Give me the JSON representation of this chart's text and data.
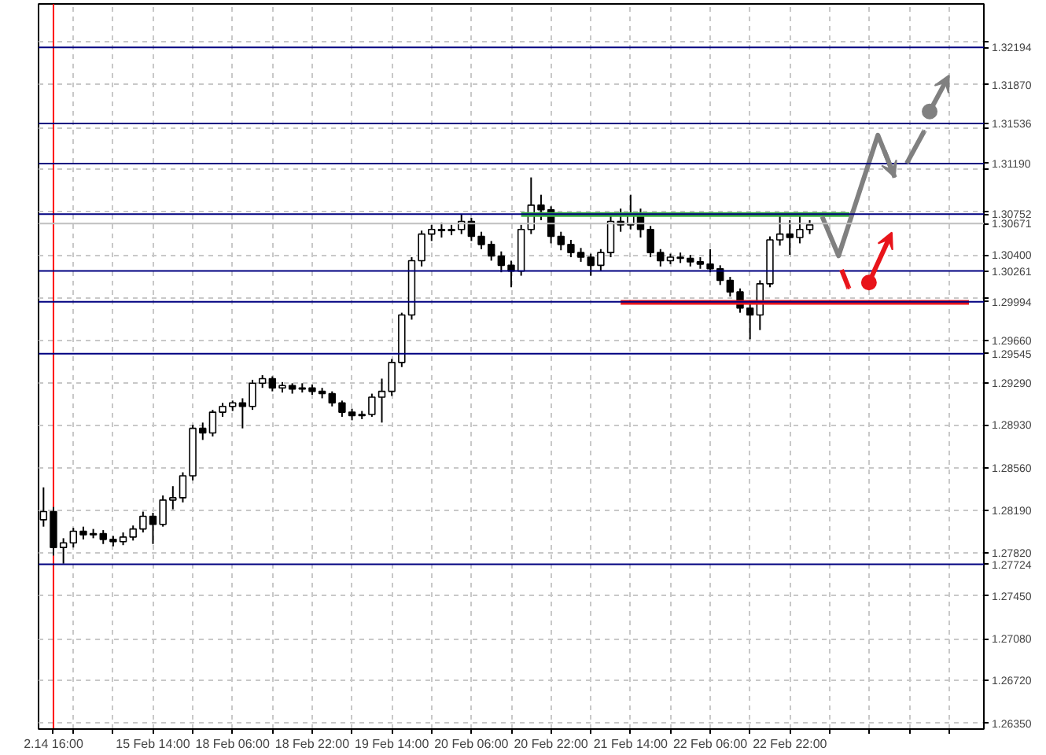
{
  "chart_data": {
    "type": "candlestick",
    "categories": [
      null,
      "2.14 16:00",
      null,
      null,
      null,
      null,
      null,
      null,
      null,
      null,
      null,
      "15 Feb 14:00",
      null,
      null,
      null,
      null,
      null,
      null,
      null,
      "18 Feb 06:00",
      null,
      null,
      null,
      null,
      null,
      null,
      null,
      "18 Feb 22:00",
      null,
      null,
      null,
      null,
      null,
      null,
      null,
      "19 Feb 14:00",
      null,
      null,
      null,
      null,
      null,
      null,
      null,
      "20 Feb 06:00",
      null,
      null,
      null,
      null,
      null,
      null,
      null,
      "20 Feb 22:00",
      null,
      null,
      null,
      null,
      null,
      null,
      null,
      "21 Feb 14:00",
      null,
      null,
      null,
      null,
      null,
      null,
      null,
      "22 Feb 06:00",
      null,
      null,
      null,
      null,
      null,
      null,
      null,
      "22 Feb 22:00",
      null,
      null,
      null,
      null,
      null,
      null,
      null,
      null,
      null,
      null,
      null,
      null,
      null,
      null,
      null,
      null,
      null,
      null,
      null
    ],
    "ohlc": [
      [
        1.2811,
        1.2839,
        1.2805,
        1.2818
      ],
      [
        1.2818,
        1.2822,
        1.278,
        1.2787
      ],
      [
        1.2787,
        1.2795,
        1.2773,
        1.2791
      ],
      [
        1.2791,
        1.2804,
        1.2787,
        1.2801
      ],
      [
        1.2801,
        1.2805,
        1.2794,
        1.2798
      ],
      [
        1.2798,
        1.2803,
        1.2795,
        1.2799
      ],
      [
        1.2799,
        1.2802,
        1.279,
        1.2794
      ],
      [
        1.2794,
        1.2797,
        1.2788,
        1.2792
      ],
      [
        1.2792,
        1.28,
        1.2789,
        1.2796
      ],
      [
        1.2796,
        1.2806,
        1.2793,
        1.2803
      ],
      [
        1.2803,
        1.2818,
        1.28,
        1.2814
      ],
      [
        1.2814,
        1.2817,
        1.279,
        1.2807
      ],
      [
        1.2807,
        1.2832,
        1.2805,
        1.2828
      ],
      [
        1.2828,
        1.284,
        1.282,
        1.283
      ],
      [
        1.283,
        1.2852,
        1.2826,
        1.2849
      ],
      [
        1.2849,
        1.2893,
        1.2845,
        1.289
      ],
      [
        1.289,
        1.2895,
        1.288,
        1.2886
      ],
      [
        1.2886,
        1.2906,
        1.2883,
        1.2904
      ],
      [
        1.2904,
        1.2912,
        1.29,
        1.2909
      ],
      [
        1.2909,
        1.2914,
        1.2905,
        1.2912
      ],
      [
        1.2912,
        1.2916,
        1.289,
        1.2909
      ],
      [
        1.2909,
        1.2932,
        1.2906,
        1.2929
      ],
      [
        1.2929,
        1.2936,
        1.2925,
        1.2933
      ],
      [
        1.2933,
        1.2935,
        1.2922,
        1.2925
      ],
      [
        1.2925,
        1.293,
        1.2921,
        1.2927
      ],
      [
        1.2927,
        1.2929,
        1.292,
        1.2924
      ],
      [
        1.2924,
        1.2929,
        1.2921,
        1.2925
      ],
      [
        1.2925,
        1.2928,
        1.2919,
        1.2922
      ],
      [
        1.2922,
        1.2925,
        1.2916,
        1.292
      ],
      [
        1.292,
        1.2922,
        1.2909,
        1.2912
      ],
      [
        1.2912,
        1.2914,
        1.29,
        1.2904
      ],
      [
        1.2904,
        1.2907,
        1.2897,
        1.2901
      ],
      [
        1.2901,
        1.2905,
        1.2898,
        1.2902
      ],
      [
        1.2902,
        1.292,
        1.29,
        1.2917
      ],
      [
        1.2917,
        1.2933,
        1.2895,
        1.2922
      ],
      [
        1.2922,
        1.295,
        1.2918,
        1.2947
      ],
      [
        1.2947,
        1.299,
        1.2943,
        1.2988
      ],
      [
        1.2988,
        1.3038,
        1.2984,
        1.3035
      ],
      [
        1.3035,
        1.3061,
        1.303,
        1.3058
      ],
      [
        1.3058,
        1.3066,
        1.3052,
        1.3062
      ],
      [
        1.3062,
        1.3068,
        1.3055,
        1.3061
      ],
      [
        1.3061,
        1.3066,
        1.3057,
        1.3062
      ],
      [
        1.3062,
        1.3075,
        1.3058,
        1.3069
      ],
      [
        1.3069,
        1.3072,
        1.3052,
        1.3056
      ],
      [
        1.3056,
        1.306,
        1.3045,
        1.3049
      ],
      [
        1.3049,
        1.3052,
        1.3035,
        1.3039
      ],
      [
        1.3039,
        1.3043,
        1.3025,
        1.3031
      ],
      [
        1.3031,
        1.3035,
        1.3012,
        1.3026
      ],
      [
        1.3026,
        1.3066,
        1.3022,
        1.3062
      ],
      [
        1.3062,
        1.3107,
        1.3058,
        1.3083
      ],
      [
        1.3083,
        1.3092,
        1.307,
        1.3079
      ],
      [
        1.3079,
        1.3082,
        1.305,
        1.3056
      ],
      [
        1.3056,
        1.306,
        1.3044,
        1.3049
      ],
      [
        1.3049,
        1.3053,
        1.3038,
        1.3042
      ],
      [
        1.3042,
        1.3046,
        1.3034,
        1.3038
      ],
      [
        1.3038,
        1.3041,
        1.3022,
        1.3031
      ],
      [
        1.3031,
        1.3045,
        1.3026,
        1.3042
      ],
      [
        1.3042,
        1.3075,
        1.3038,
        1.3069
      ],
      [
        1.3069,
        1.308,
        1.306,
        1.3066
      ],
      [
        1.3066,
        1.3092,
        1.3062,
        1.3076
      ],
      [
        1.3076,
        1.308,
        1.3055,
        1.3062
      ],
      [
        1.3062,
        1.3065,
        1.3038,
        1.3042
      ],
      [
        1.3042,
        1.3045,
        1.303,
        1.3035
      ],
      [
        1.3035,
        1.3041,
        1.3032,
        1.3038
      ],
      [
        1.3038,
        1.3042,
        1.3033,
        1.3037
      ],
      [
        1.3037,
        1.304,
        1.303,
        1.3034
      ],
      [
        1.3034,
        1.3038,
        1.3028,
        1.3032
      ],
      [
        1.3032,
        1.3045,
        1.3025,
        1.3028
      ],
      [
        1.3028,
        1.3031,
        1.3014,
        1.3018
      ],
      [
        1.3018,
        1.3021,
        1.3004,
        1.3008
      ],
      [
        1.3008,
        1.3011,
        1.299,
        1.2994
      ],
      [
        1.2994,
        1.3,
        1.2967,
        1.2988
      ],
      [
        1.2988,
        1.3018,
        1.2975,
        1.3015
      ],
      [
        1.3015,
        1.3056,
        1.3012,
        1.3053
      ],
      [
        1.3053,
        1.3075,
        1.3048,
        1.3058
      ],
      [
        1.3058,
        1.307,
        1.304,
        1.3055
      ],
      [
        1.3055,
        1.3075,
        1.305,
        1.3062
      ],
      [
        1.3062,
        1.307,
        1.3058,
        1.3066
      ],
      null,
      null,
      null,
      null,
      null,
      null,
      null,
      null,
      null,
      null,
      null,
      null,
      null,
      null,
      null,
      null,
      null
    ],
    "series": [
      {
        "type": "line",
        "color": "#3cb043",
        "values": [
          null,
          null,
          null,
          null,
          null,
          null,
          null,
          null,
          null,
          null,
          null,
          null,
          null,
          null,
          null,
          null,
          null,
          null,
          null,
          null,
          null,
          null,
          null,
          null,
          null,
          null,
          null,
          null,
          null,
          null,
          null,
          null,
          null,
          null,
          null,
          null,
          null,
          null,
          null,
          null,
          null,
          null,
          null,
          null,
          null,
          null,
          null,
          null,
          1.3075,
          1.3075,
          1.3075,
          1.3075,
          1.3075,
          1.3075,
          1.3075,
          1.3075,
          1.3075,
          1.3075,
          1.3075,
          1.3075,
          1.3075,
          1.3075,
          1.3075,
          1.3075,
          1.3075,
          1.3075,
          1.3075,
          1.3075,
          1.3075,
          1.3075,
          1.3075,
          1.3075,
          1.3075,
          1.3075,
          1.3075,
          1.3075,
          1.3075,
          1.3075,
          1.3075,
          1.3075,
          1.3075,
          1.3075,
          null,
          null,
          null,
          null,
          null,
          null,
          null,
          null,
          null,
          null,
          null,
          null,
          null
        ]
      },
      {
        "type": "line",
        "color": "#e8141a",
        "values": [
          null,
          null,
          null,
          null,
          null,
          null,
          null,
          null,
          null,
          null,
          null,
          null,
          null,
          null,
          null,
          null,
          null,
          null,
          null,
          null,
          null,
          null,
          null,
          null,
          null,
          null,
          null,
          null,
          null,
          null,
          null,
          null,
          null,
          null,
          null,
          null,
          null,
          null,
          null,
          null,
          null,
          null,
          null,
          null,
          null,
          null,
          null,
          null,
          null,
          null,
          null,
          null,
          null,
          null,
          null,
          null,
          null,
          null,
          1.2999,
          1.2999,
          1.2999,
          1.2999,
          1.2999,
          1.2999,
          1.2999,
          1.2999,
          1.2999,
          1.2999,
          1.2999,
          1.2999,
          1.2999,
          1.2999,
          1.2999,
          1.2999,
          1.2999,
          1.2999,
          1.2999,
          1.2999,
          1.2999,
          1.2999,
          1.2999,
          1.2999,
          1.2999,
          1.2999,
          1.2999,
          1.2999,
          1.2999,
          1.2999,
          1.2999,
          1.2999,
          1.2999,
          1.2999,
          1.2999,
          1.2999,
          null
        ]
      }
    ],
    "ylim": [
      1.263,
      1.3257
    ],
    "yticks": [
      {
        "value": 1.2635,
        "label": "1.26350"
      },
      {
        "value": 1.2672,
        "label": "1.26720"
      },
      {
        "value": 1.2708,
        "label": "1.27080"
      },
      {
        "value": 1.2745,
        "label": "1.27450"
      },
      {
        "value": 1.2782,
        "label": "1.27820"
      },
      {
        "value": 1.2819,
        "label": "1.28190"
      },
      {
        "value": 1.2856,
        "label": "1.28560"
      },
      {
        "value": 1.2893,
        "label": "1.28930"
      },
      {
        "value": 1.2929,
        "label": "1.29290"
      },
      {
        "value": 1.2966,
        "label": "1.29660"
      },
      {
        "value": 1.3003,
        "label": null
      },
      {
        "value": 1.304,
        "label": "1.30400"
      },
      {
        "value": 1.3077,
        "label": null
      },
      {
        "value": 1.3114,
        "label": null
      },
      {
        "value": 1.315,
        "label": null
      },
      {
        "value": 1.3187,
        "label": "1.31870"
      },
      {
        "value": 1.3224,
        "label": null
      }
    ],
    "ref_lines": [
      {
        "axis": "y",
        "value": 1.32194,
        "label": "1.32194",
        "color": "#000080"
      },
      {
        "axis": "y",
        "value": 1.31536,
        "label": "1.31536",
        "color": "#000080"
      },
      {
        "axis": "y",
        "value": 1.3119,
        "label": "1.31190",
        "color": "#000080"
      },
      {
        "axis": "y",
        "value": 1.30752,
        "label": "1.30752",
        "color": "#000080"
      },
      {
        "axis": "y",
        "value": 1.30671,
        "label": "1.30671",
        "color": "#c0c0c0"
      },
      {
        "axis": "y",
        "value": 1.30261,
        "label": "1.30261",
        "color": "#000080"
      },
      {
        "axis": "y",
        "value": 1.29994,
        "label": "1.29994",
        "color": "#000080"
      },
      {
        "axis": "y",
        "value": 1.29545,
        "label": "1.29545",
        "color": "#000080"
      },
      {
        "axis": "y",
        "value": 1.27724,
        "label": "1.27724",
        "color": "#000080"
      },
      {
        "axis": "x",
        "value": "2.14 16:00",
        "color": "#ff0000"
      }
    ],
    "grid": true
  }
}
